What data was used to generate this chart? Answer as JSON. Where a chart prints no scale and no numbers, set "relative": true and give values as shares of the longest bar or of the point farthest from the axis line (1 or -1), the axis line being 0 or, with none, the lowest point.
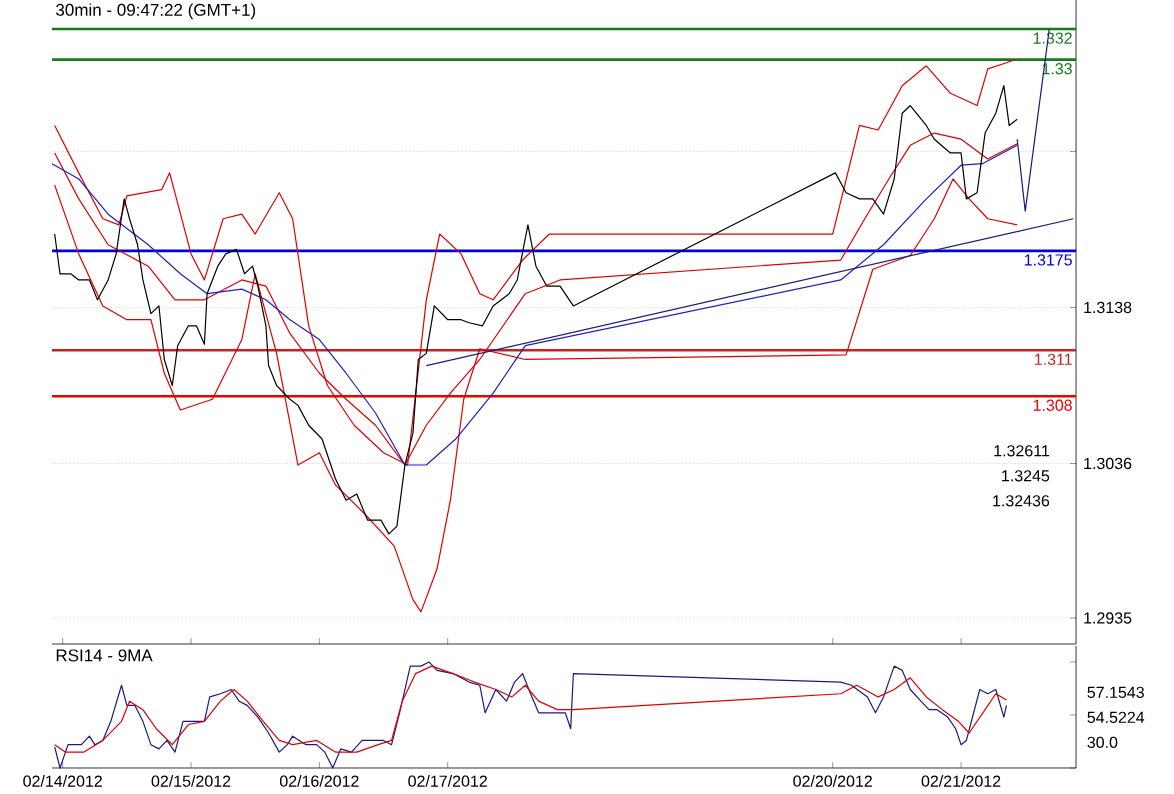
{
  "chart_data": [
    {
      "type": "line",
      "title": "30min - 09:47:22 (GMT+1)",
      "xlim": [
        "2012-02-13T22:00",
        "2012-02-21T21:30"
      ],
      "ylim": [
        1.2918,
        1.3339
      ],
      "xticks": [
        {
          "value": "2012-02-14",
          "label": null
        },
        {
          "value": "2012-02-15",
          "label": null
        },
        {
          "value": "2012-02-16",
          "label": null
        },
        {
          "value": "2012-02-17",
          "label": null
        },
        {
          "value": "2012-02-20",
          "label": null
        },
        {
          "value": "2012-02-21",
          "label": null
        }
      ],
      "yticks": [
        1.2935,
        1.3036,
        1.3138,
        {
          "value": 1.324,
          "label": null
        }
      ],
      "tick_labels": "y",
      "grid": "y",
      "marker": "none",
      "series": [
        {
          "color": "#e00000",
          "x": [
            "2012-02-13T22:30",
            "2012-02-14T03:00",
            "2012-02-14T07:30",
            "2012-02-14T10:30",
            "2012-02-14T12:00",
            "2012-02-14T18:30",
            "2012-02-14T20:00",
            "2012-02-15T00:00",
            "2012-02-15T02:30",
            "2012-02-15T06:00",
            "2012-02-15T09:30",
            "2012-02-15T12:00",
            "2012-02-15T16:30",
            "2012-02-15T19:00",
            "2012-02-15T22:00",
            "2012-02-16T01:30",
            "2012-02-16T06:30",
            "2012-02-16T12:00",
            "2012-02-16T16:30",
            "2012-02-16T20:00",
            "2012-02-16T22:30",
            "2012-02-17T02:30",
            "2012-02-17T06:00",
            "2012-02-17T08:30",
            "2012-02-17T14:00",
            "2012-02-17T19:00",
            "2012-02-20T00:00",
            "2012-02-20T05:00",
            "2012-02-20T08:30",
            "2012-02-20T13:00",
            "2012-02-20T17:30",
            "2012-02-20T22:00",
            "2012-02-21T03:00",
            "2012-02-21T05:00",
            "2012-02-21T08:30",
            "2012-02-21T10:00"
          ],
          "values": [
            1.3257,
            1.3226,
            1.3196,
            1.3192,
            1.3211,
            1.3215,
            1.3226,
            1.3173,
            1.3156,
            1.3196,
            1.3199,
            1.3186,
            1.3213,
            1.3196,
            1.3126,
            1.3087,
            1.3061,
            1.3043,
            1.3035,
            1.3143,
            1.3186,
            1.3173,
            1.3147,
            1.3143,
            1.3169,
            1.3186,
            1.3186,
            1.3257,
            1.3254,
            1.3283,
            1.3296,
            1.3278,
            1.327,
            1.3294,
            1.3298,
            1.33
          ]
        },
        {
          "color": "#e00000",
          "x": [
            "2012-02-13T22:30",
            "2012-02-14T03:00",
            "2012-02-14T07:30",
            "2012-02-14T12:00",
            "2012-02-14T16:30",
            "2012-02-14T19:00",
            "2012-02-14T22:00",
            "2012-02-15T04:00",
            "2012-02-15T09:30",
            "2012-02-15T12:00",
            "2012-02-15T16:00",
            "2012-02-15T20:00",
            "2012-02-16T00:00",
            "2012-02-16T03:00",
            "2012-02-16T08:30",
            "2012-02-16T14:00",
            "2012-02-16T17:30",
            "2012-02-16T19:00",
            "2012-02-16T22:00",
            "2012-02-17T00:30",
            "2012-02-17T03:00",
            "2012-02-17T06:00",
            "2012-02-17T14:30",
            "2012-02-20T02:30",
            "2012-02-20T07:30",
            "2012-02-20T14:30",
            "2012-02-20T19:00",
            "2012-02-20T22:30",
            "2012-02-21T01:30",
            "2012-02-21T05:00",
            "2012-02-21T10:30"
          ],
          "values": [
            1.3218,
            1.3173,
            1.3139,
            1.313,
            1.313,
            1.3095,
            1.3071,
            1.3078,
            1.3117,
            1.316,
            1.3108,
            1.3035,
            1.3043,
            1.3022,
            1.3003,
            1.2982,
            1.2947,
            1.2939,
            1.2967,
            1.3012,
            1.3078,
            1.3111,
            1.3104,
            1.3107,
            1.3163,
            1.3172,
            1.3196,
            1.3222,
            1.3209,
            1.3196,
            1.3192
          ]
        },
        {
          "color": "#e00000",
          "x": [
            "2012-02-13T22:30",
            "2012-02-14T03:00",
            "2012-02-14T08:30",
            "2012-02-14T16:00",
            "2012-02-14T21:00",
            "2012-02-15T02:30",
            "2012-02-15T09:30",
            "2012-02-15T14:00",
            "2012-02-15T18:30",
            "2012-02-16T00:00",
            "2012-02-16T05:00",
            "2012-02-16T10:30",
            "2012-02-16T16:00",
            "2012-02-16T20:00",
            "2012-02-17T00:30",
            "2012-02-17T06:00",
            "2012-02-17T14:30",
            "2012-02-17T21:00",
            "2012-02-20T01:30",
            "2012-02-20T06:00",
            "2012-02-20T10:30",
            "2012-02-20T14:30",
            "2012-02-20T19:00",
            "2012-02-21T00:00",
            "2012-02-21T05:00",
            "2012-02-21T10:30"
          ],
          "values": [
            1.3239,
            1.3209,
            1.3179,
            1.3165,
            1.3143,
            1.3143,
            1.3156,
            1.3152,
            1.3121,
            1.3095,
            1.3078,
            1.3061,
            1.3035,
            1.3061,
            1.3082,
            1.3104,
            1.3147,
            1.3156,
            1.3169,
            1.3196,
            1.3222,
            1.3244,
            1.3252,
            1.3248,
            1.3235,
            1.3245
          ]
        },
        {
          "color": "#2020c0",
          "x": [
            "2012-02-13T22:00",
            "2012-02-14T03:00",
            "2012-02-14T08:30",
            "2012-02-14T16:00",
            "2012-02-14T22:00",
            "2012-02-15T03:00",
            "2012-02-15T09:30",
            "2012-02-15T14:00",
            "2012-02-15T18:30",
            "2012-02-16T00:00",
            "2012-02-16T05:00",
            "2012-02-16T10:30",
            "2012-02-16T16:00",
            "2012-02-16T20:00",
            "2012-02-17T01:30",
            "2012-02-17T08:30",
            "2012-02-17T14:30",
            "2012-02-20T01:30",
            "2012-02-20T09:30",
            "2012-02-20T17:30",
            "2012-02-21T00:00",
            "2012-02-21T04:00",
            "2012-02-21T10:30"
          ],
          "values": [
            1.3232,
            1.3222,
            1.3199,
            1.3179,
            1.316,
            1.3147,
            1.315,
            1.3143,
            1.313,
            1.3117,
            1.3095,
            1.3069,
            1.3035,
            1.3035,
            1.3052,
            1.3082,
            1.3113,
            1.3156,
            1.3179,
            1.3209,
            1.3231,
            1.3232,
            1.3244
          ]
        },
        {
          "color": "#000000",
          "x": [
            "2012-02-13T22:30",
            "2012-02-13T23:30",
            "2012-02-14T01:30",
            "2012-02-14T03:00",
            "2012-02-14T05:00",
            "2012-02-14T06:30",
            "2012-02-14T08:30",
            "2012-02-14T10:00",
            "2012-02-14T11:30",
            "2012-02-14T12:30",
            "2012-02-14T14:00",
            "2012-02-14T15:00",
            "2012-02-14T16:30",
            "2012-02-14T18:00",
            "2012-02-14T19:00",
            "2012-02-14T20:30",
            "2012-02-14T21:30",
            "2012-02-14T23:30",
            "2012-02-15T01:00",
            "2012-02-15T02:30",
            "2012-02-15T03:00",
            "2012-02-15T05:00",
            "2012-02-15T06:30",
            "2012-02-15T08:30",
            "2012-02-15T10:00",
            "2012-02-15T11:30",
            "2012-02-15T12:30",
            "2012-02-15T14:00",
            "2012-02-15T14:30",
            "2012-02-15T16:00",
            "2012-02-15T18:30",
            "2012-02-15T20:00",
            "2012-02-15T22:00",
            "2012-02-16T00:30",
            "2012-02-16T03:00",
            "2012-02-16T05:00",
            "2012-02-16T07:00",
            "2012-02-16T09:00",
            "2012-02-16T11:30",
            "2012-02-16T13:00",
            "2012-02-16T14:30",
            "2012-02-16T16:00",
            "2012-02-16T17:30",
            "2012-02-16T18:30",
            "2012-02-16T20:00",
            "2012-02-16T21:30",
            "2012-02-17T00:00",
            "2012-02-17T02:30",
            "2012-02-17T04:00",
            "2012-02-17T06:30",
            "2012-02-17T08:30",
            "2012-02-17T11:30",
            "2012-02-17T13:00",
            "2012-02-17T15:00",
            "2012-02-17T16:30",
            "2012-02-17T18:30",
            "2012-02-17T21:00",
            "2012-02-17T23:30",
            "2012-02-20T00:30",
            "2012-02-20T02:30",
            "2012-02-20T05:00",
            "2012-02-20T07:30",
            "2012-02-20T09:30",
            "2012-02-20T11:30",
            "2012-02-20T13:00",
            "2012-02-20T14:30",
            "2012-02-20T17:30",
            "2012-02-20T19:00",
            "2012-02-20T22:00",
            "2012-02-21T00:00",
            "2012-02-21T01:00",
            "2012-02-21T03:00",
            "2012-02-21T04:30",
            "2012-02-21T06:30",
            "2012-02-21T08:00",
            "2012-02-21T09:00",
            "2012-02-21T10:30"
          ],
          "values": [
            1.3186,
            1.316,
            1.316,
            1.3156,
            1.3156,
            1.3143,
            1.3156,
            1.3173,
            1.3209,
            1.3196,
            1.3179,
            1.3156,
            1.3134,
            1.3139,
            1.3104,
            1.3087,
            1.3113,
            1.3126,
            1.3126,
            1.3114,
            1.3147,
            1.3165,
            1.3173,
            1.3176,
            1.316,
            1.3165,
            1.3152,
            1.3126,
            1.31,
            1.3087,
            1.3078,
            1.3074,
            1.3061,
            1.3052,
            1.3026,
            1.3012,
            1.3016,
            1.2999,
            1.2999,
            1.299,
            1.2995,
            1.3035,
            1.3056,
            1.3104,
            1.3108,
            1.3139,
            1.313,
            1.313,
            1.3128,
            1.3126,
            1.3139,
            1.3147,
            1.3156,
            1.3192,
            1.3165,
            1.3152,
            1.3152,
            1.3139,
            1.3226,
            1.3213,
            1.3209,
            1.3209,
            1.3199,
            1.3222,
            1.3265,
            1.327,
            1.3257,
            1.3248,
            1.3239,
            1.3239,
            1.3209,
            1.3213,
            1.3252,
            1.3265,
            1.3283,
            1.3257,
            1.3261
          ]
        },
        {
          "color": "#1a1a80",
          "x": [
            "2012-02-16T20:00",
            "2012-02-21T21:00"
          ],
          "values": [
            1.31,
            1.3196
          ]
        },
        {
          "color": "#1a1a80",
          "x": [
            "2012-02-21T10:30",
            "2012-02-21T12:00",
            "2012-02-21T16:30"
          ],
          "values": [
            1.3248,
            1.3201,
            1.332
          ]
        }
      ],
      "ref_lines": [
        {
          "axis": "y",
          "value": 1.332,
          "label": "1.332",
          "color": "#1a7a1a"
        },
        {
          "axis": "y",
          "value": 1.33,
          "label": "1.33",
          "color": "#1a7a1a"
        },
        {
          "axis": "y",
          "value": 1.3175,
          "label": "1.3175",
          "color": "#0000e0"
        },
        {
          "axis": "y",
          "value": 1.311,
          "label": "1.311",
          "color": "#cc2020"
        },
        {
          "axis": "y",
          "value": 1.308,
          "label": "1.308",
          "color": "#ee0000"
        }
      ],
      "annotations": [
        "1.32611",
        "1.3245",
        "1.32436"
      ]
    },
    {
      "type": "line",
      "title": "RSI14 - 9MA",
      "relative": true,
      "xlim": [
        "2012-02-13T22:00",
        "2012-02-21T21:30"
      ],
      "xticks": [
        {
          "value": "2012-02-14",
          "label": "02/14/2012"
        },
        {
          "value": "2012-02-15",
          "label": "02/15/2012"
        },
        {
          "value": "2012-02-16",
          "label": "02/16/2012"
        },
        {
          "value": "2012-02-17",
          "label": "02/17/2012"
        },
        {
          "value": "2012-02-20",
          "label": "02/20/2012"
        },
        {
          "value": "2012-02-21",
          "label": "02/21/2012"
        }
      ],
      "marker": "none",
      "series": [
        {
          "color": "#1a1a80",
          "x": [
            "2012-02-13T22:30",
            "2012-02-13T23:30",
            "2012-02-14T01:00",
            "2012-02-14T03:30",
            "2012-02-14T05:00",
            "2012-02-14T06:00",
            "2012-02-14T07:30",
            "2012-02-14T09:00",
            "2012-02-14T11:00",
            "2012-02-14T12:00",
            "2012-02-14T13:30",
            "2012-02-14T15:00",
            "2012-02-14T16:30",
            "2012-02-14T18:00",
            "2012-02-14T19:30",
            "2012-02-14T21:00",
            "2012-02-14T22:30",
            "2012-02-15T00:30",
            "2012-02-15T02:30",
            "2012-02-15T03:30",
            "2012-02-15T05:30",
            "2012-02-15T07:30",
            "2012-02-15T09:00",
            "2012-02-15T10:30",
            "2012-02-15T12:30",
            "2012-02-15T14:30",
            "2012-02-15T16:30",
            "2012-02-15T18:00",
            "2012-02-15T19:00",
            "2012-02-15T21:30",
            "2012-02-15T23:30",
            "2012-02-16T01:00",
            "2012-02-16T02:30",
            "2012-02-16T04:00",
            "2012-02-16T06:00",
            "2012-02-16T08:00",
            "2012-02-16T10:00",
            "2012-02-16T12:00",
            "2012-02-16T13:30",
            "2012-02-16T15:00",
            "2012-02-16T17:00",
            "2012-02-16T19:00",
            "2012-02-16T20:30",
            "2012-02-16T22:00",
            "2012-02-17T01:00",
            "2012-02-17T04:00",
            "2012-02-17T06:00",
            "2012-02-17T07:00",
            "2012-02-17T09:00",
            "2012-02-17T11:00",
            "2012-02-17T12:30",
            "2012-02-17T14:00",
            "2012-02-17T15:30",
            "2012-02-17T17:00",
            "2012-02-17T18:30",
            "2012-02-17T20:30",
            "2012-02-17T22:00",
            "2012-02-17T23:00",
            "2012-02-17T23:30",
            "2012-02-20T01:30",
            "2012-02-20T03:30",
            "2012-02-20T06:30",
            "2012-02-20T08:00",
            "2012-02-20T09:30",
            "2012-02-20T11:30",
            "2012-02-20T13:00",
            "2012-02-20T14:30",
            "2012-02-20T16:30",
            "2012-02-20T18:00",
            "2012-02-20T19:30",
            "2012-02-20T21:30",
            "2012-02-20T23:00",
            "2012-02-21T00:00",
            "2012-02-21T01:00",
            "2012-02-21T03:30",
            "2012-02-21T05:00",
            "2012-02-21T06:30",
            "2012-02-21T08:00",
            "2012-02-21T08:30"
          ],
          "values": [
            0.2,
            0,
            0.22,
            0.22,
            0.3,
            0.22,
            0.26,
            0.44,
            0.78,
            0.59,
            0.59,
            0.44,
            0.22,
            0.18,
            0.26,
            0.15,
            0.44,
            0.44,
            0.44,
            0.67,
            0.7,
            0.74,
            0.63,
            0.59,
            0.48,
            0.33,
            0.15,
            0.22,
            0.3,
            0.22,
            0.22,
            0.15,
            0,
            0.18,
            0.15,
            0.26,
            0.26,
            0.26,
            0.22,
            0.52,
            0.96,
            0.96,
            1,
            0.92,
            0.89,
            0.81,
            0.78,
            0.52,
            0.74,
            0.63,
            0.81,
            0.89,
            0.7,
            0.52,
            0.52,
            0.52,
            0.52,
            0.37,
            0.89,
            0.81,
            0.78,
            0.67,
            0.52,
            0.67,
            0.96,
            0.92,
            0.74,
            0.63,
            0.55,
            0.55,
            0.48,
            0.37,
            0.22,
            0.26,
            0.74,
            0.7,
            0.74,
            0.48,
            0.59
          ]
        },
        {
          "color": "#e00000",
          "x": [
            "2012-02-13T22:30",
            "2012-02-14T00:30",
            "2012-02-14T04:00",
            "2012-02-14T07:30",
            "2012-02-14T11:00",
            "2012-02-14T12:30",
            "2012-02-14T15:00",
            "2012-02-14T17:30",
            "2012-02-14T20:30",
            "2012-02-14T23:30",
            "2012-02-15T02:30",
            "2012-02-15T05:30",
            "2012-02-15T08:00",
            "2012-02-15T10:30",
            "2012-02-15T13:30",
            "2012-02-15T16:30",
            "2012-02-15T19:00",
            "2012-02-15T23:30",
            "2012-02-16T03:00",
            "2012-02-16T07:00",
            "2012-02-16T11:00",
            "2012-02-16T13:30",
            "2012-02-16T15:30",
            "2012-02-16T18:00",
            "2012-02-16T21:00",
            "2012-02-17T01:00",
            "2012-02-17T05:00",
            "2012-02-17T09:00",
            "2012-02-17T12:00",
            "2012-02-17T14:30",
            "2012-02-17T17:00",
            "2012-02-17T20:30",
            "2012-02-17T23:30",
            "2012-02-20T01:30",
            "2012-02-20T04:30",
            "2012-02-20T08:30",
            "2012-02-20T11:30",
            "2012-02-20T14:30",
            "2012-02-20T17:30",
            "2012-02-20T20:30",
            "2012-02-20T23:30",
            "2012-02-21T01:30",
            "2012-02-21T04:30",
            "2012-02-21T06:30",
            "2012-02-21T08:30"
          ],
          "values": [
            0.22,
            0.15,
            0.15,
            0.26,
            0.44,
            0.63,
            0.55,
            0.37,
            0.22,
            0.41,
            0.44,
            0.63,
            0.74,
            0.63,
            0.44,
            0.26,
            0.22,
            0.26,
            0.15,
            0.15,
            0.22,
            0.26,
            0.63,
            0.89,
            0.96,
            0.89,
            0.81,
            0.74,
            0.67,
            0.78,
            0.63,
            0.55,
            0.55,
            0.7,
            0.78,
            0.67,
            0.74,
            0.85,
            0.67,
            0.55,
            0.44,
            0.33,
            0.55,
            0.7,
            0.64
          ]
        }
      ],
      "annotations": [
        "57.1543",
        "54.5224",
        "30.0"
      ]
    }
  ]
}
